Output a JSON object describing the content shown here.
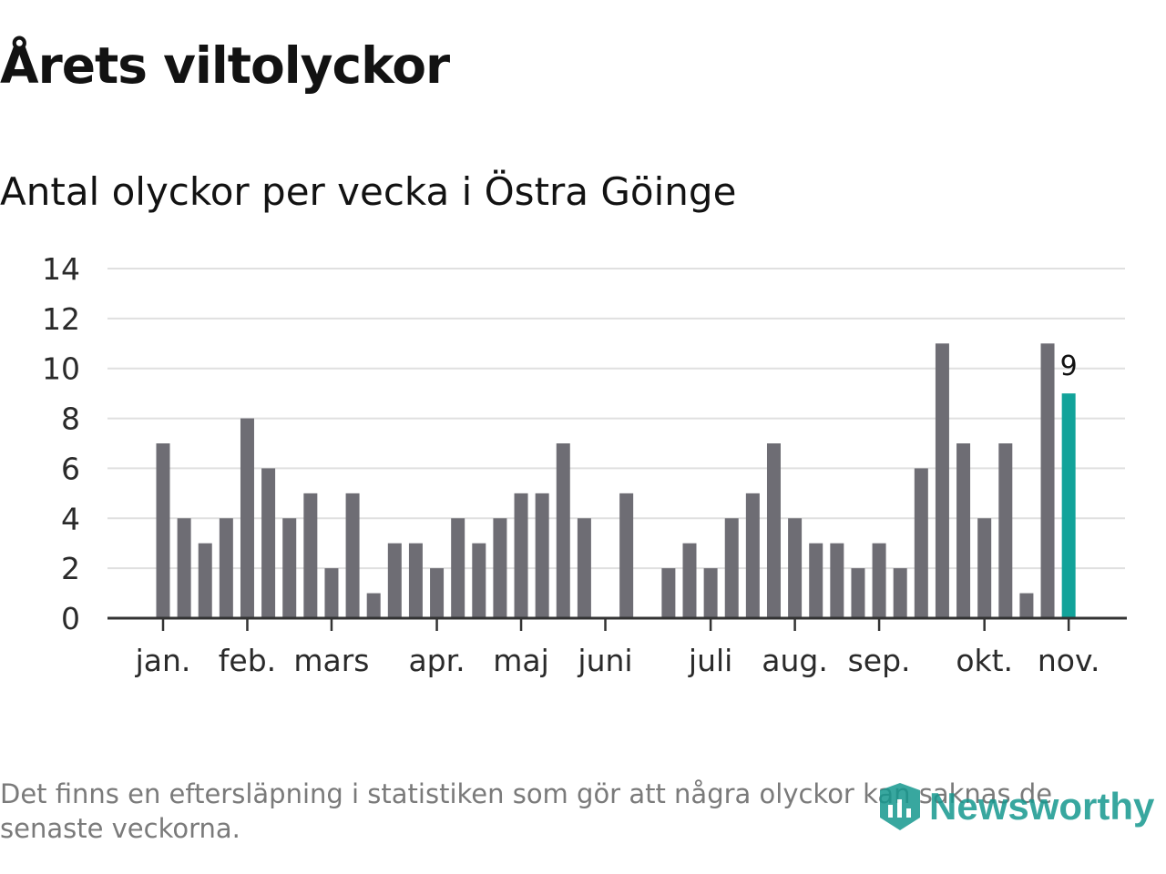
{
  "title": "Årets viltolyckor",
  "subtitle": "Antal olyckor per vecka i Östra Göinge",
  "footnote": "Det finns en eftersläpning i statistiken som gör att några olyckor kan saknas de senaste veckorna.",
  "brand": {
    "name": "Newsworthy",
    "logo_icon": "newsworthy-logo-icon",
    "color": "#16988f"
  },
  "colors": {
    "bar": "#6e6d74",
    "highlight": "#12a39a",
    "grid": "#e0e0e0",
    "axis": "#333333"
  },
  "chart_data": {
    "type": "bar",
    "ylim": [
      0,
      14
    ],
    "yticks": [
      0,
      2,
      4,
      6,
      8,
      10,
      12,
      14
    ],
    "grid": true,
    "x_tick_labels": [
      {
        "label": "jan.",
        "week": 1
      },
      {
        "label": "feb.",
        "week": 5
      },
      {
        "label": "mars",
        "week": 9
      },
      {
        "label": "apr.",
        "week": 14
      },
      {
        "label": "maj",
        "week": 18
      },
      {
        "label": "juni",
        "week": 22
      },
      {
        "label": "juli",
        "week": 27
      },
      {
        "label": "aug.",
        "week": 31
      },
      {
        "label": "sep.",
        "week": 35
      },
      {
        "label": "okt.",
        "week": 40
      },
      {
        "label": "nov.",
        "week": 44
      }
    ],
    "weeks": [
      1,
      2,
      3,
      4,
      5,
      6,
      7,
      8,
      9,
      10,
      11,
      12,
      13,
      14,
      15,
      16,
      17,
      18,
      19,
      20,
      21,
      22,
      23,
      24,
      25,
      26,
      27,
      28,
      29,
      30,
      31,
      32,
      33,
      34,
      35,
      36,
      37,
      38,
      39,
      40,
      41,
      42,
      43,
      44
    ],
    "values": [
      7,
      4,
      3,
      4,
      8,
      6,
      4,
      5,
      2,
      5,
      1,
      3,
      3,
      2,
      4,
      3,
      4,
      5,
      5,
      7,
      4,
      0,
      5,
      0,
      2,
      3,
      2,
      4,
      5,
      7,
      4,
      3,
      3,
      2,
      3,
      2,
      6,
      11,
      7,
      4,
      7,
      1,
      11,
      9
    ],
    "highlight_index": 43,
    "highlight_label": "9"
  }
}
